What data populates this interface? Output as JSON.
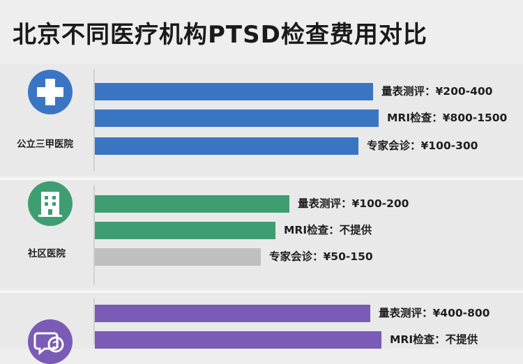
{
  "title": "北京不同医疗机构PTSD检查费用对比",
  "colors": {
    "public": "#3a75c4",
    "community": "#3f9d72",
    "community_na": "#bfbfbf",
    "private": "#7a5bb5"
  },
  "chart_data": {
    "type": "bar",
    "orientation": "horizontal",
    "title": "北京不同医疗机构PTSD检查费用对比",
    "groups": [
      {
        "name": "公立三甲医院",
        "icon": "hospital-cross-icon",
        "color": "#3a75c4",
        "items": [
          {
            "label": "量表测评：¥200-400",
            "min": 200,
            "max": 400
          },
          {
            "label": "MRI检查：¥800-1500",
            "min": 800,
            "max": 1500
          },
          {
            "label": "专家会诊：¥100-300",
            "min": 100,
            "max": 300
          }
        ]
      },
      {
        "name": "社区医院",
        "icon": "building-icon",
        "color": "#3f9d72",
        "items": [
          {
            "label": "量表测评：¥100-200",
            "min": 100,
            "max": 200
          },
          {
            "label": "MRI检查：不提供",
            "min": null,
            "max": null
          },
          {
            "label": "专家会诊：¥50-150",
            "min": 50,
            "max": 150
          }
        ]
      },
      {
        "name": "",
        "icon": "speech-bubble-brain-icon",
        "color": "#7a5bb5",
        "items": [
          {
            "label": "量表测评：¥400-800",
            "min": 400,
            "max": 800
          },
          {
            "label": "MRI检查：不提供",
            "min": null,
            "max": null
          }
        ]
      }
    ]
  },
  "bar_levels": [
    [
      0.97,
      0.99,
      0.92
    ],
    [
      0.68,
      0.63,
      0.58
    ],
    [
      0.96,
      1.0
    ]
  ]
}
